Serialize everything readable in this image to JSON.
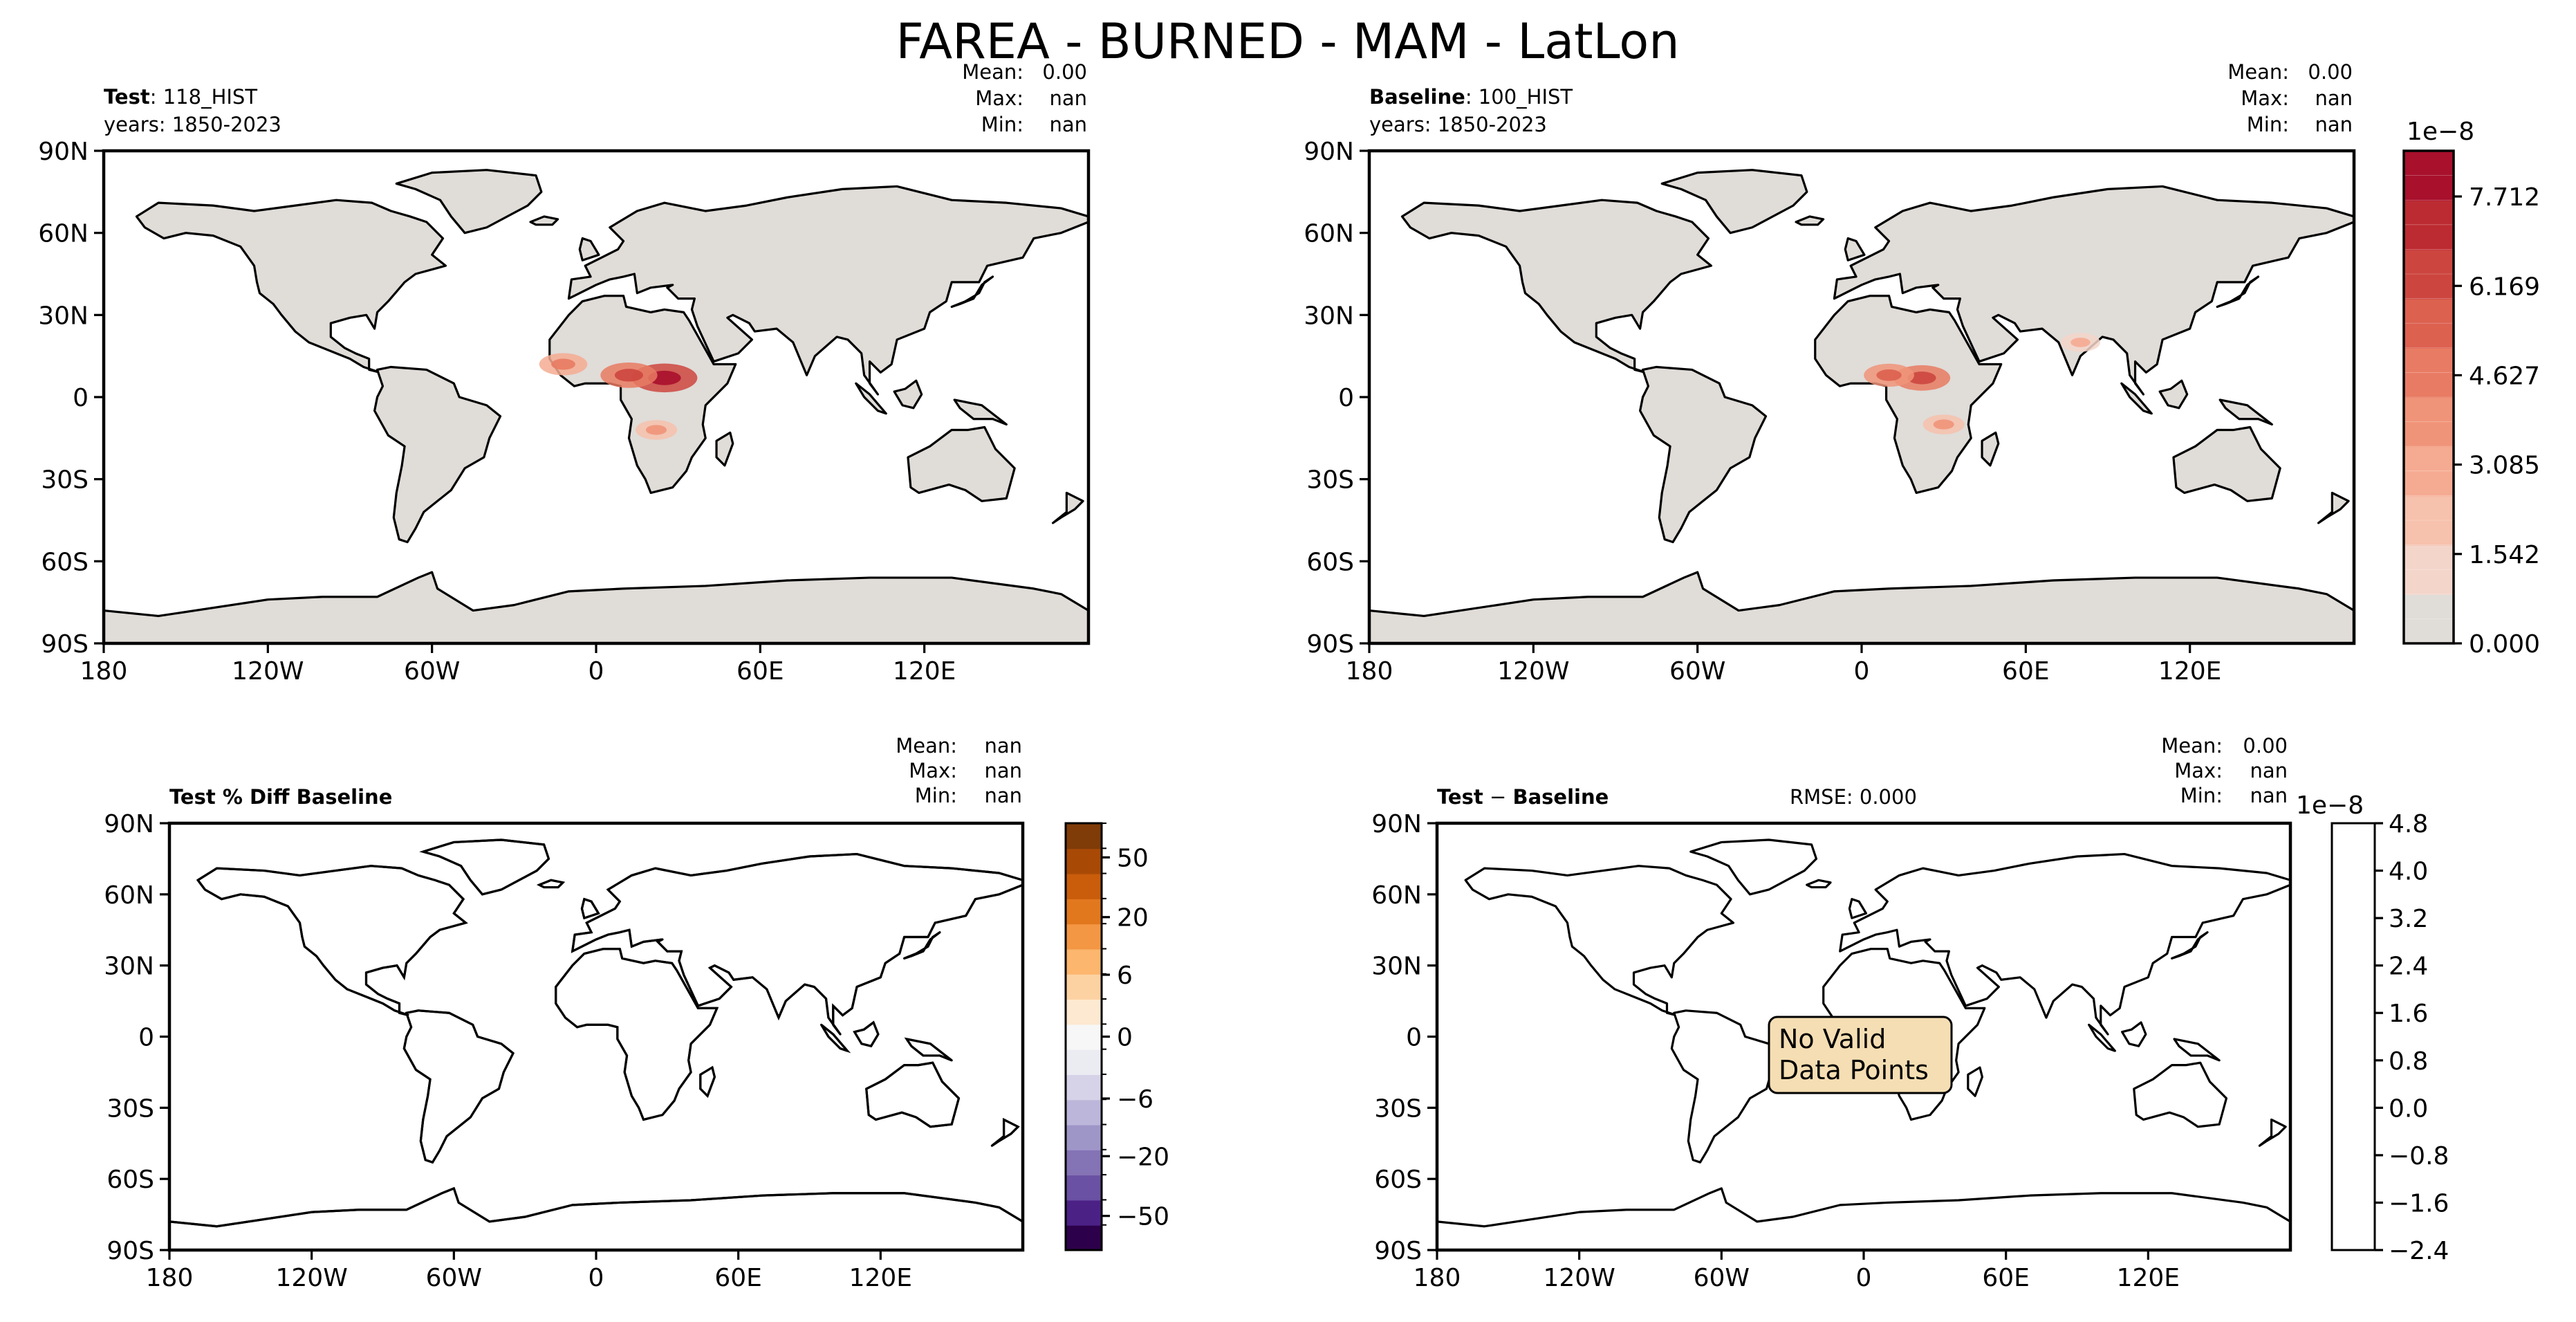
{
  "title": "FAREA - BURNED - MAM - LatLon",
  "colors": {
    "land": "#e0dcd8",
    "seq_colormap": [
      "#e0dcd8",
      "#f3d5ca",
      "#f6c1ad",
      "#f5ab92",
      "#f09479",
      "#e87b63",
      "#dc614f",
      "#cc463f",
      "#bc2b32",
      "#a8102c"
    ],
    "div_colormap": [
      "#2d004b",
      "#4c2186",
      "#6a51a3",
      "#8473b5",
      "#9f96c8",
      "#bcb7da",
      "#d6d3e8",
      "#ebebf2",
      "#f7f7f7",
      "#fde9d1",
      "#fdd2a3",
      "#fcb66d",
      "#f39744",
      "#e2781e",
      "#c95d0b",
      "#a84a06",
      "#7f3b08"
    ],
    "nodata_box": "#f5deb3"
  },
  "panels": {
    "test": {
      "label_bold": "Test",
      "label_rest": ": 118_HIST",
      "years": "years: 1850-2023",
      "stats": {
        "mean": "0.00",
        "max": "nan",
        "min": "nan"
      }
    },
    "baseline": {
      "label_bold": "Baseline",
      "label_rest": ": 100_HIST",
      "years": "years: 1850-2023",
      "stats": {
        "mean": "0.00",
        "max": "nan",
        "min": "nan"
      }
    },
    "pctdiff": {
      "label": "Test % Diff Baseline",
      "stats": {
        "mean": "nan",
        "max": "nan",
        "min": "nan"
      }
    },
    "diff": {
      "label_bold1": "Test",
      "label_mid": " − ",
      "label_bold2": "Baseline",
      "rmse": "RMSE: 0.000",
      "stats": {
        "mean": "0.00",
        "max": "nan",
        "min": "nan"
      },
      "nodata_line1": "No Valid",
      "nodata_line2": "Data Points"
    }
  },
  "stat_labels": {
    "mean": "Mean:",
    "max": "Max:",
    "min": "Min:"
  },
  "chart_data": [
    {
      "type": "heatmap",
      "name": "test",
      "xlim": [
        -180,
        180
      ],
      "ylim": [
        -90,
        90
      ],
      "x_ticks": [
        "180",
        "120W",
        "60W",
        "0",
        "60E",
        "120E"
      ],
      "y_ticks": [
        "90N",
        "60N",
        "30N",
        "0",
        "30S",
        "60S",
        "90S"
      ],
      "hotspots": [
        {
          "lon": 25,
          "lat": 7,
          "intensity": 0.75
        },
        {
          "lon": 12,
          "lat": 8,
          "intensity": 0.55
        },
        {
          "lon": -12,
          "lat": 12,
          "intensity": 0.35
        },
        {
          "lon": 22,
          "lat": -12,
          "intensity": 0.2
        }
      ]
    },
    {
      "type": "heatmap",
      "name": "baseline",
      "xlim": [
        -180,
        180
      ],
      "ylim": [
        -90,
        90
      ],
      "x_ticks": [
        "180",
        "120W",
        "60W",
        "0",
        "60E",
        "120E"
      ],
      "y_ticks": [
        "90N",
        "60N",
        "30N",
        "0",
        "30S",
        "60S",
        "90S"
      ],
      "hotspots": [
        {
          "lon": 22,
          "lat": 7,
          "intensity": 0.55
        },
        {
          "lon": 10,
          "lat": 8,
          "intensity": 0.4
        },
        {
          "lon": 30,
          "lat": -10,
          "intensity": 0.2
        },
        {
          "lon": 80,
          "lat": 20,
          "intensity": 0.15
        }
      ]
    },
    {
      "type": "heatmap",
      "name": "pctdiff",
      "xlim": [
        -180,
        180
      ],
      "ylim": [
        -90,
        90
      ],
      "x_ticks": [
        "180",
        "120W",
        "60W",
        "0",
        "60E",
        "120E"
      ],
      "y_ticks": [
        "90N",
        "60N",
        "30N",
        "0",
        "30S",
        "60S",
        "90S"
      ]
    },
    {
      "type": "heatmap",
      "name": "diff",
      "xlim": [
        -180,
        180
      ],
      "ylim": [
        -90,
        90
      ],
      "x_ticks": [
        "180",
        "120W",
        "60W",
        "0",
        "60E",
        "120E"
      ],
      "y_ticks": [
        "90N",
        "60N",
        "30N",
        "0",
        "30S",
        "60S",
        "90S"
      ]
    }
  ],
  "colorbars": {
    "seq": {
      "exponent": "1e−8",
      "ticks": [
        "7.712",
        "6.169",
        "4.627",
        "3.085",
        "1.542",
        "0.000"
      ],
      "levels": [
        7.712,
        6.169,
        4.627,
        3.085,
        1.542,
        0.0
      ],
      "range": [
        0,
        8.5
      ]
    },
    "div": {
      "ticks": [
        "50",
        "20",
        "6",
        "0",
        "−6",
        "−20",
        "−50"
      ]
    },
    "diff": {
      "exponent": "1e−8",
      "ticks": [
        "4.8",
        "4.0",
        "3.2",
        "2.4",
        "1.6",
        "0.8",
        "0.0",
        "−0.8",
        "−1.6",
        "−2.4"
      ],
      "levels": [
        4.8,
        4.0,
        3.2,
        2.4,
        1.6,
        0.8,
        0.0,
        -0.8,
        -1.6,
        -2.4
      ],
      "range": [
        -2.4,
        4.8
      ]
    }
  }
}
